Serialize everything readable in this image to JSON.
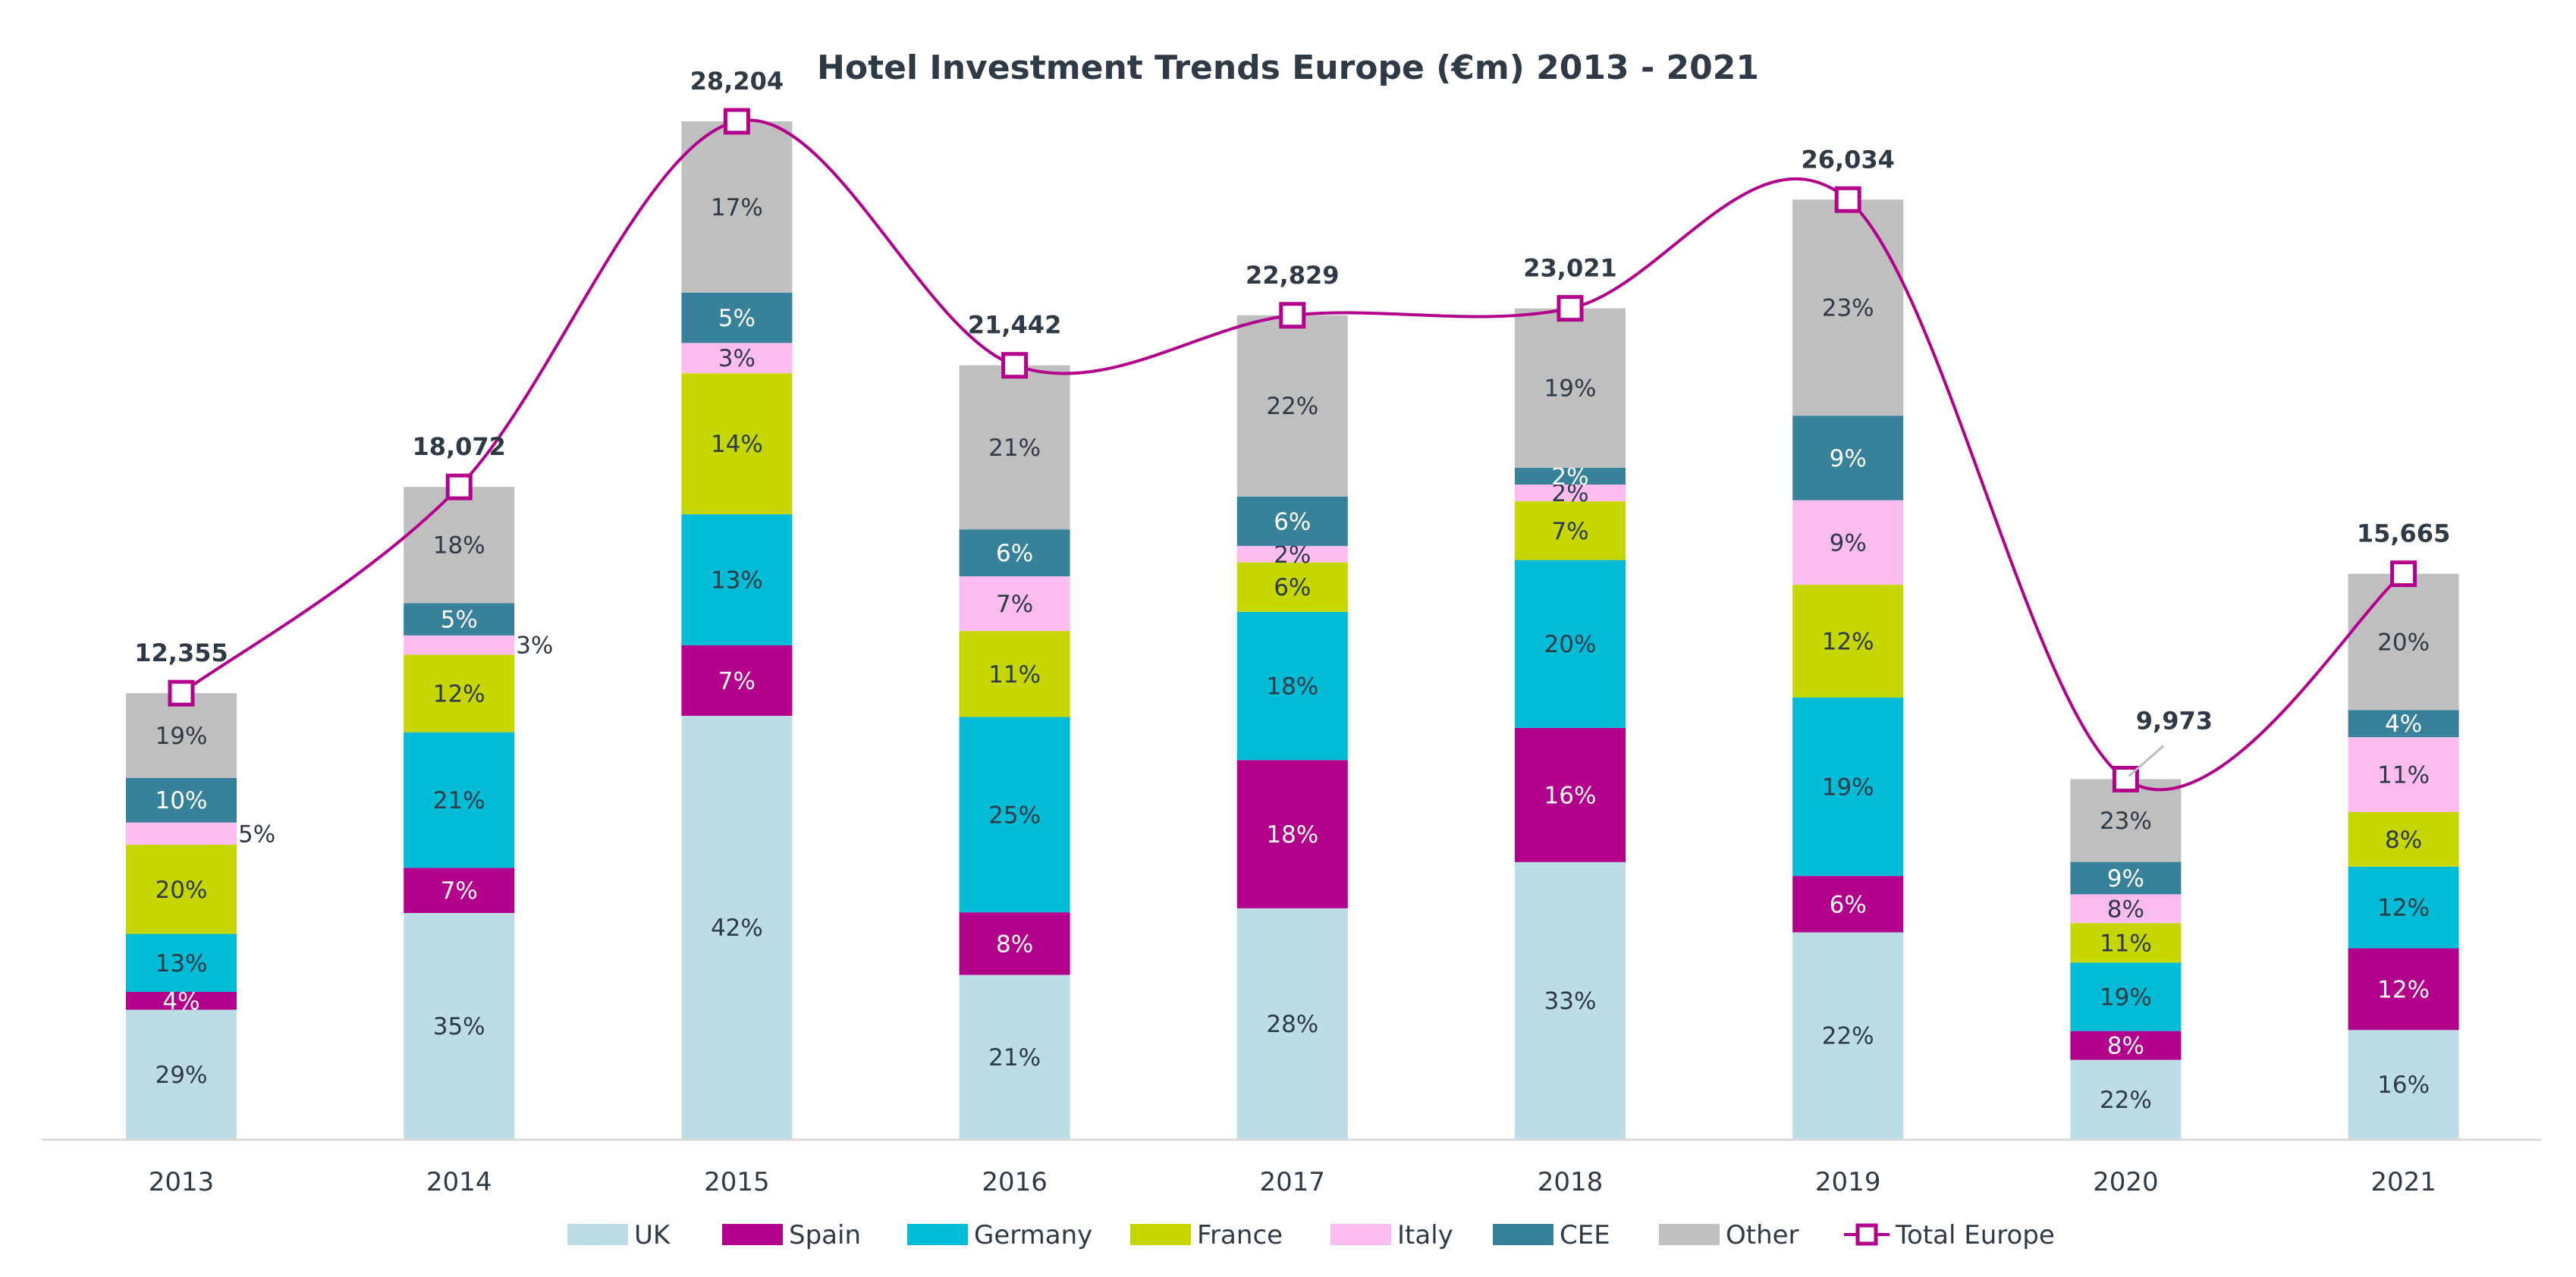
{
  "chart_data": {
    "type": "bar",
    "subtype": "stacked-bar-with-line",
    "title": "Hotel Investment Trends Europe (€m) 2013 - 2021",
    "xlabel": "",
    "ylabel": "",
    "grid": false,
    "legend_position": "bottom",
    "categories": [
      "2013",
      "2014",
      "2015",
      "2016",
      "2017",
      "2018",
      "2019",
      "2020",
      "2021"
    ],
    "series": [
      {
        "name": "UK",
        "color": "#bcdde6",
        "label_color": "#2e3a46",
        "values_pct": [
          29,
          35,
          42,
          21,
          28,
          33,
          22,
          22,
          16
        ]
      },
      {
        "name": "Spain",
        "color": "#b3008c",
        "label_color": "#ffffff",
        "values_pct": [
          4,
          7,
          7,
          8,
          18,
          16,
          6,
          8,
          12
        ]
      },
      {
        "name": "Germany",
        "color": "#00bcd6",
        "label_color": "#2e3a46",
        "values_pct": [
          13,
          21,
          13,
          25,
          18,
          20,
          19,
          19,
          12
        ]
      },
      {
        "name": "France",
        "color": "#c5d600",
        "label_color": "#2e3a46",
        "values_pct": [
          20,
          12,
          14,
          11,
          6,
          7,
          12,
          11,
          8
        ]
      },
      {
        "name": "Italy",
        "color": "#fcbcef",
        "label_color": "#2e3a46",
        "values_pct": [
          5,
          3,
          3,
          7,
          2,
          2,
          9,
          8,
          11
        ]
      },
      {
        "name": "CEE",
        "color": "#37819a",
        "label_color": "#ffffff",
        "values_pct": [
          10,
          5,
          5,
          6,
          6,
          2,
          9,
          9,
          4
        ]
      },
      {
        "name": "Other",
        "color": "#bfbfbf",
        "label_color": "#2e3a46",
        "values_pct": [
          19,
          18,
          17,
          21,
          22,
          19,
          23,
          23,
          20
        ]
      }
    ],
    "outside_labels": [
      {
        "series": "Italy",
        "category": "2013"
      },
      {
        "series": "Italy",
        "category": "2014"
      }
    ],
    "line_series": {
      "name": "Total Europe",
      "color": "#b3008c",
      "marker": "square-hollow",
      "values": [
        12355,
        18072,
        28204,
        21442,
        22829,
        23021,
        26034,
        9973,
        15665
      ],
      "labels": [
        "12,355",
        "18,072",
        "28,204",
        "21,442",
        "22,829",
        "23,021",
        "26,034",
        "9,973",
        "15,665"
      ]
    },
    "ylim": [
      0,
      28204
    ]
  }
}
